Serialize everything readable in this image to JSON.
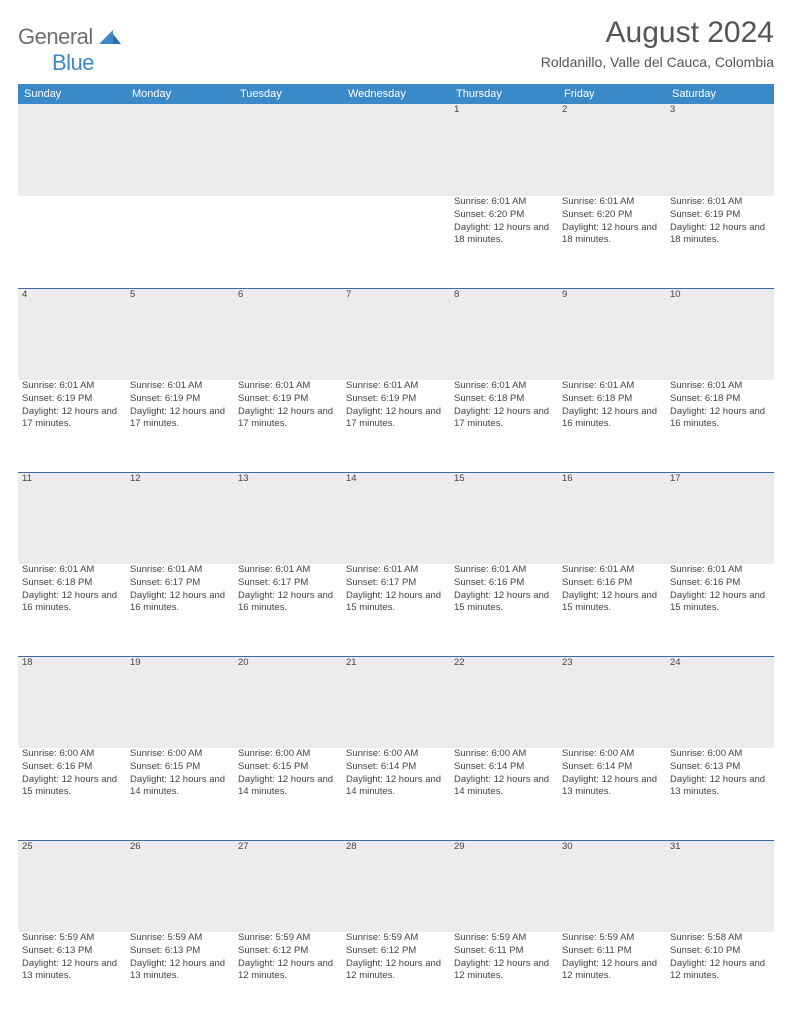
{
  "brand": {
    "part1": "General",
    "part2": "Blue"
  },
  "title": "August 2024",
  "location": "Roldanillo, Valle del Cauca, Colombia",
  "colors": {
    "header_bg": "#3b89c7",
    "header_text": "#ffffff",
    "daynum_bg": "#ececec",
    "rule": "#3b6e9e",
    "logo_gray": "#6f6f6f",
    "logo_blue": "#3b89c7",
    "body_text": "#444444"
  },
  "weekdays": [
    "Sunday",
    "Monday",
    "Tuesday",
    "Wednesday",
    "Thursday",
    "Friday",
    "Saturday"
  ],
  "weeks": [
    {
      "nums": [
        "",
        "",
        "",
        "",
        "1",
        "2",
        "3"
      ],
      "cells": [
        null,
        null,
        null,
        null,
        {
          "sunrise": "6:01 AM",
          "sunset": "6:20 PM",
          "daylight": "12 hours and 18 minutes."
        },
        {
          "sunrise": "6:01 AM",
          "sunset": "6:20 PM",
          "daylight": "12 hours and 18 minutes."
        },
        {
          "sunrise": "6:01 AM",
          "sunset": "6:19 PM",
          "daylight": "12 hours and 18 minutes."
        }
      ]
    },
    {
      "nums": [
        "4",
        "5",
        "6",
        "7",
        "8",
        "9",
        "10"
      ],
      "cells": [
        {
          "sunrise": "6:01 AM",
          "sunset": "6:19 PM",
          "daylight": "12 hours and 17 minutes."
        },
        {
          "sunrise": "6:01 AM",
          "sunset": "6:19 PM",
          "daylight": "12 hours and 17 minutes."
        },
        {
          "sunrise": "6:01 AM",
          "sunset": "6:19 PM",
          "daylight": "12 hours and 17 minutes."
        },
        {
          "sunrise": "6:01 AM",
          "sunset": "6:19 PM",
          "daylight": "12 hours and 17 minutes."
        },
        {
          "sunrise": "6:01 AM",
          "sunset": "6:18 PM",
          "daylight": "12 hours and 17 minutes."
        },
        {
          "sunrise": "6:01 AM",
          "sunset": "6:18 PM",
          "daylight": "12 hours and 16 minutes."
        },
        {
          "sunrise": "6:01 AM",
          "sunset": "6:18 PM",
          "daylight": "12 hours and 16 minutes."
        }
      ]
    },
    {
      "nums": [
        "11",
        "12",
        "13",
        "14",
        "15",
        "16",
        "17"
      ],
      "cells": [
        {
          "sunrise": "6:01 AM",
          "sunset": "6:18 PM",
          "daylight": "12 hours and 16 minutes."
        },
        {
          "sunrise": "6:01 AM",
          "sunset": "6:17 PM",
          "daylight": "12 hours and 16 minutes."
        },
        {
          "sunrise": "6:01 AM",
          "sunset": "6:17 PM",
          "daylight": "12 hours and 16 minutes."
        },
        {
          "sunrise": "6:01 AM",
          "sunset": "6:17 PM",
          "daylight": "12 hours and 15 minutes."
        },
        {
          "sunrise": "6:01 AM",
          "sunset": "6:16 PM",
          "daylight": "12 hours and 15 minutes."
        },
        {
          "sunrise": "6:01 AM",
          "sunset": "6:16 PM",
          "daylight": "12 hours and 15 minutes."
        },
        {
          "sunrise": "6:01 AM",
          "sunset": "6:16 PM",
          "daylight": "12 hours and 15 minutes."
        }
      ]
    },
    {
      "nums": [
        "18",
        "19",
        "20",
        "21",
        "22",
        "23",
        "24"
      ],
      "cells": [
        {
          "sunrise": "6:00 AM",
          "sunset": "6:16 PM",
          "daylight": "12 hours and 15 minutes."
        },
        {
          "sunrise": "6:00 AM",
          "sunset": "6:15 PM",
          "daylight": "12 hours and 14 minutes."
        },
        {
          "sunrise": "6:00 AM",
          "sunset": "6:15 PM",
          "daylight": "12 hours and 14 minutes."
        },
        {
          "sunrise": "6:00 AM",
          "sunset": "6:14 PM",
          "daylight": "12 hours and 14 minutes."
        },
        {
          "sunrise": "6:00 AM",
          "sunset": "6:14 PM",
          "daylight": "12 hours and 14 minutes."
        },
        {
          "sunrise": "6:00 AM",
          "sunset": "6:14 PM",
          "daylight": "12 hours and 13 minutes."
        },
        {
          "sunrise": "6:00 AM",
          "sunset": "6:13 PM",
          "daylight": "12 hours and 13 minutes."
        }
      ]
    },
    {
      "nums": [
        "25",
        "26",
        "27",
        "28",
        "29",
        "30",
        "31"
      ],
      "cells": [
        {
          "sunrise": "5:59 AM",
          "sunset": "6:13 PM",
          "daylight": "12 hours and 13 minutes."
        },
        {
          "sunrise": "5:59 AM",
          "sunset": "6:13 PM",
          "daylight": "12 hours and 13 minutes."
        },
        {
          "sunrise": "5:59 AM",
          "sunset": "6:12 PM",
          "daylight": "12 hours and 12 minutes."
        },
        {
          "sunrise": "5:59 AM",
          "sunset": "6:12 PM",
          "daylight": "12 hours and 12 minutes."
        },
        {
          "sunrise": "5:59 AM",
          "sunset": "6:11 PM",
          "daylight": "12 hours and 12 minutes."
        },
        {
          "sunrise": "5:59 AM",
          "sunset": "6:11 PM",
          "daylight": "12 hours and 12 minutes."
        },
        {
          "sunrise": "5:58 AM",
          "sunset": "6:10 PM",
          "daylight": "12 hours and 12 minutes."
        }
      ]
    }
  ],
  "labels": {
    "sunrise": "Sunrise:",
    "sunset": "Sunset:",
    "daylight": "Daylight:"
  }
}
